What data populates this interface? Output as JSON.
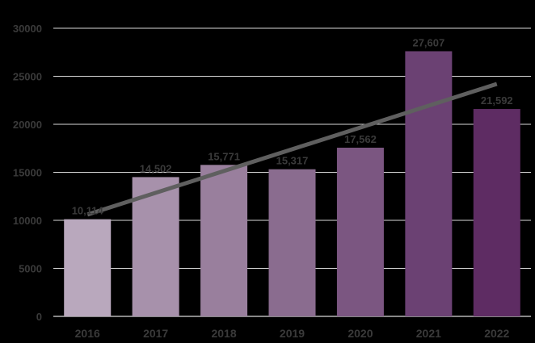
{
  "chart_data": {
    "type": "bar",
    "title": "",
    "xlabel": "",
    "ylabel": "",
    "categories": [
      "2016",
      "2017",
      "2018",
      "2019",
      "2020",
      "2021",
      "2022"
    ],
    "values": [
      10114,
      14502,
      15771,
      15317,
      17562,
      27607,
      21592
    ],
    "value_labels": [
      "10,114",
      "14,502",
      "15,771",
      "15,317",
      "17,562",
      "27,607",
      "21,592"
    ],
    "ylim": [
      0,
      30000
    ],
    "yticks": [
      0,
      5000,
      10000,
      15000,
      20000,
      25000,
      30000
    ],
    "ytick_labels": [
      "0",
      "5000",
      "10000",
      "15000",
      "20000",
      "25000",
      "30000"
    ],
    "grid": true,
    "legend": "none",
    "trendline": {
      "type": "linear",
      "start": 10600,
      "end": 24200,
      "color": "#5f5f5f"
    },
    "bar_colors": [
      "#b9a8bd",
      "#a791ab",
      "#997f9d",
      "#8a6c8f",
      "#7b5681",
      "#6b4173",
      "#5e2c63"
    ],
    "background": "#000000"
  }
}
